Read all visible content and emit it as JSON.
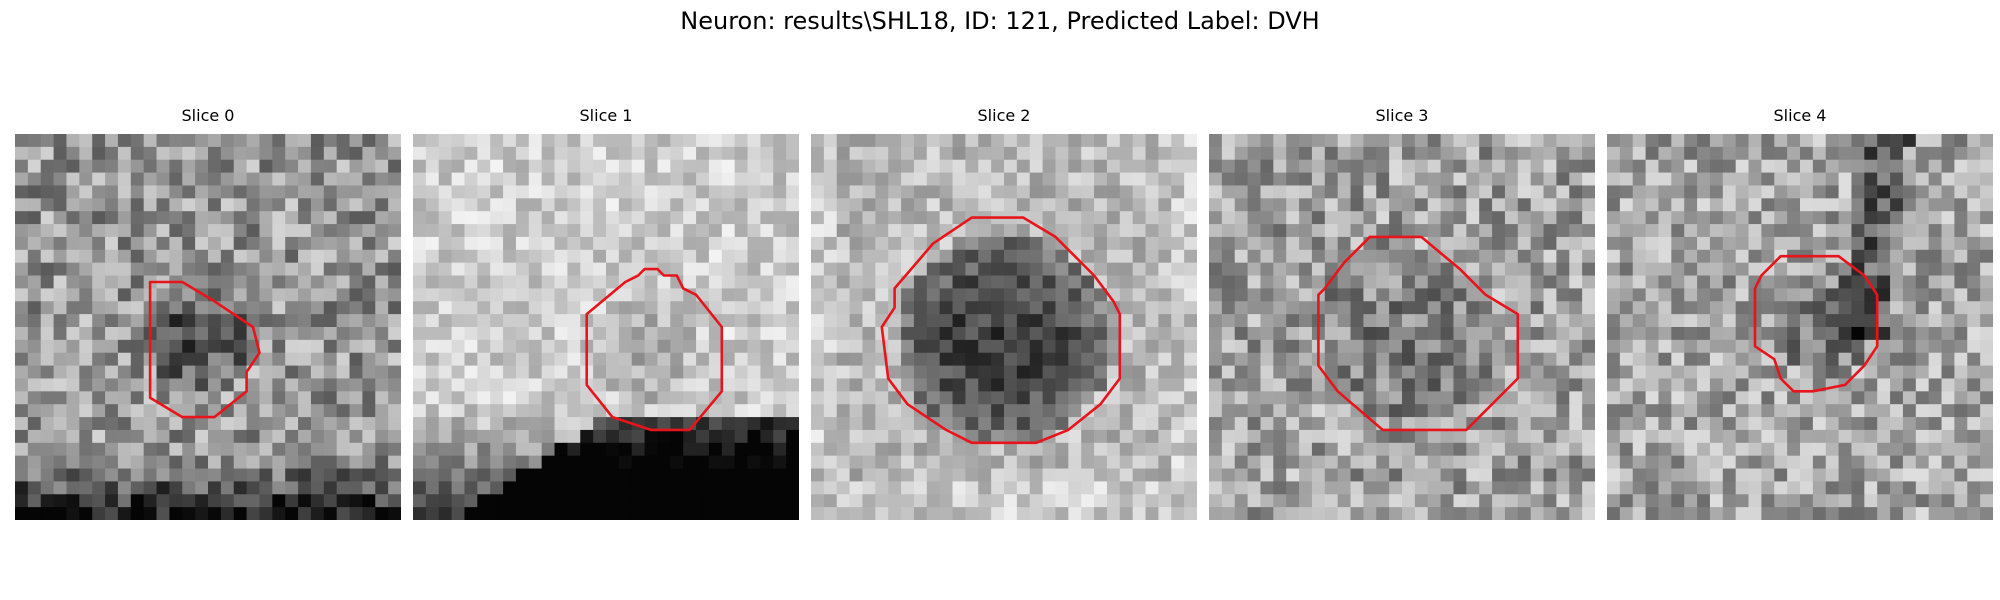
{
  "figure": {
    "title": "Neuron: results\\SHL18, ID: 121, Predicted Label: DVH"
  },
  "panels": [
    {
      "title": "Slice 0"
    },
    {
      "title": "Slice 1"
    },
    {
      "title": "Slice 2"
    },
    {
      "title": "Slice 3"
    },
    {
      "title": "Slice 4"
    }
  ],
  "colors": {
    "contour": "#e8141c",
    "background": "#ffffff"
  }
}
